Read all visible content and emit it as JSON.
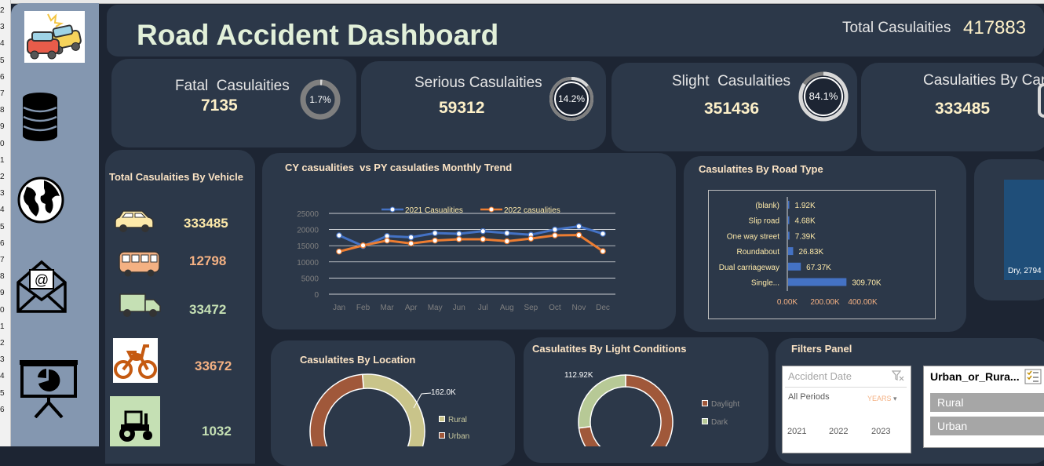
{
  "excel": {
    "row_numbers": [
      "2",
      "3",
      "4",
      "5",
      "6",
      "7",
      "8",
      "9",
      "0",
      "1",
      "2",
      "3",
      "4",
      "5",
      "6",
      "7",
      "8",
      "9",
      "0",
      "1",
      "2",
      "3",
      "4",
      "5",
      "6"
    ]
  },
  "sidebar": {
    "items": [
      {
        "name": "accident-cars-icon"
      },
      {
        "name": "database-icon"
      },
      {
        "name": "globe-icon"
      },
      {
        "name": "mail-icon"
      },
      {
        "name": "presentation-icon"
      }
    ]
  },
  "header": {
    "title": "Road Accident Dashboard",
    "total_label": "Total Casulaities",
    "total_value": "417883"
  },
  "kpis": [
    {
      "label": "Fatal  Casulaities",
      "value": "7135",
      "pct_label": "1.7%",
      "pct": 0.017
    },
    {
      "label": "Serious Casulaities",
      "value": "59312",
      "pct_label": "14.2%",
      "pct": 0.142
    },
    {
      "label": "Slight  Casulaities",
      "value": "351436",
      "pct_label": "84.1%",
      "pct": 0.841
    },
    {
      "label": "Casulaities By Car",
      "value": "333485"
    }
  ],
  "vehicles": {
    "title": "Total Casulaities By Vehicle",
    "items": [
      {
        "icon": "car-icon",
        "value": "333485",
        "color": "#fde9a9"
      },
      {
        "icon": "bus-icon",
        "value": "12798",
        "color": "#f4b183"
      },
      {
        "icon": "truck-icon",
        "value": "33472",
        "color": "#c5e0b4"
      },
      {
        "icon": "motorcycle-icon",
        "value": "33672",
        "color": "#f4b183"
      },
      {
        "icon": "tractor-icon",
        "value": "1032",
        "color": "#c5e0b4"
      }
    ]
  },
  "trend": {
    "title": "CY casualities  vs PY casulaties Monthly Trend",
    "legend_2021": "2021 Casualities",
    "legend_2022": "2022 casualities",
    "y_ticks": [
      "25000",
      "20000",
      "15000",
      "10000",
      "5000",
      "0"
    ]
  },
  "road": {
    "title": "Casulatites By Road Type",
    "x_ticks": [
      "0.00K",
      "200.00K",
      "400.00K"
    ]
  },
  "location": {
    "title": "Casulatites By Location",
    "label": "162.0K",
    "legend": [
      "Rural",
      "Urban"
    ]
  },
  "light": {
    "title": "Casulatites By Light Conditions",
    "label": "112.92K",
    "legend": [
      "Daylight",
      "Dark"
    ]
  },
  "surface": {
    "label": "Dry, 2794"
  },
  "filters": {
    "title": "Filters Panel",
    "date_slicer": {
      "header": "Accident Date",
      "periods": "All Periods",
      "unit": "YEARS",
      "years": [
        "2021",
        "2022",
        "2023"
      ]
    },
    "area_slicer": {
      "header": "Urban_or_Rura...",
      "options": [
        "Rural",
        "Urban"
      ]
    }
  },
  "chart_data": [
    {
      "type": "line",
      "title": "CY casualities  vs PY casulaties Monthly Trend",
      "x": [
        "Jan",
        "Feb",
        "Mar",
        "Apr",
        "May",
        "Jun",
        "Jul",
        "Aug",
        "Sep",
        "Oct",
        "Nov",
        "Dec"
      ],
      "ylim": [
        0,
        25000
      ],
      "series": [
        {
          "name": "2021 Casualities",
          "color": "#4472c4",
          "values": [
            18200,
            14900,
            18000,
            17600,
            18900,
            18700,
            19500,
            18900,
            18400,
            20000,
            21000,
            18700
          ]
        },
        {
          "name": "2022 casualities",
          "color": "#ed7d31",
          "values": [
            13200,
            15100,
            16600,
            15700,
            16600,
            17000,
            17000,
            16400,
            17200,
            18200,
            18300,
            13300
          ]
        }
      ]
    },
    {
      "type": "bar",
      "title": "Casulatites By Road Type",
      "categories": [
        "(blank)",
        "Slip road",
        "One way street",
        "Roundabout",
        "Dual carriageway",
        "Single..."
      ],
      "values": [
        1.92,
        4.68,
        7.39,
        26.83,
        67.37,
        309.7
      ],
      "data_labels": [
        "1.92K",
        "4.68K",
        "7.39K",
        "26.83K",
        "67.37K",
        "309.70K"
      ],
      "xlim": [
        0,
        400
      ]
    },
    {
      "type": "pie",
      "title": "Casulatites By Location",
      "categories": [
        "Rural",
        "Urban"
      ],
      "values": [
        162.0,
        255.9
      ],
      "colors": [
        "#c9c48a",
        "#a0583a"
      ]
    },
    {
      "type": "pie",
      "title": "Casulatites By Light Conditions",
      "categories": [
        "Daylight",
        "Dark"
      ],
      "values": [
        305.0,
        112.92
      ],
      "colors": [
        "#a0583a",
        "#b7c996"
      ]
    }
  ]
}
